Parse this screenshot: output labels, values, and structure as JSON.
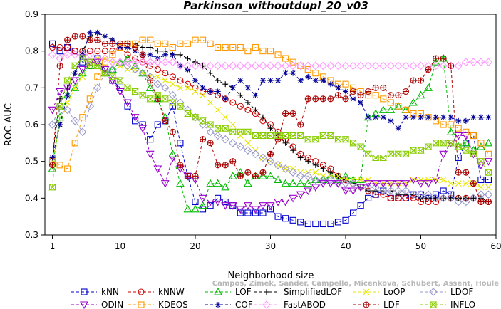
{
  "chart_data": {
    "type": "line",
    "title": "Parkinson_withoutdupl_20_v03",
    "xlabel": "Neighborhood size",
    "ylabel": "ROC AUC",
    "xlim": [
      0,
      60
    ],
    "ylim": [
      0.3,
      0.9
    ],
    "xticks": [
      1,
      10,
      20,
      30,
      40,
      50,
      60
    ],
    "yticks": [
      0.3,
      0.4,
      0.5,
      0.6,
      0.7,
      0.8,
      0.9
    ],
    "grid": false,
    "legend": "bottom",
    "x": [
      1,
      2,
      3,
      4,
      5,
      6,
      7,
      8,
      9,
      10,
      11,
      12,
      13,
      14,
      15,
      16,
      17,
      18,
      19,
      20,
      21,
      22,
      23,
      24,
      25,
      26,
      27,
      28,
      29,
      30,
      31,
      32,
      33,
      34,
      35,
      36,
      37,
      38,
      39,
      40,
      41,
      42,
      43,
      44,
      45,
      46,
      47,
      48,
      49,
      50,
      51,
      52,
      53,
      54,
      55,
      56,
      57,
      58,
      59
    ],
    "series": [
      {
        "name": "kNN",
        "color": "#0000cc",
        "marker": "square",
        "values": [
          0.82,
          0.8,
          0.81,
          0.8,
          0.77,
          0.76,
          0.78,
          0.75,
          0.72,
          0.7,
          0.65,
          0.61,
          0.6,
          0.56,
          0.6,
          0.61,
          0.65,
          0.55,
          0.46,
          0.39,
          0.37,
          0.38,
          0.4,
          0.39,
          0.38,
          0.36,
          0.36,
          0.36,
          0.36,
          0.37,
          0.35,
          0.345,
          0.34,
          0.335,
          0.33,
          0.33,
          0.33,
          0.33,
          0.335,
          0.34,
          0.36,
          0.38,
          0.4,
          0.41,
          0.42,
          0.4,
          0.4,
          0.4,
          0.41,
          0.41,
          0.4,
          0.41,
          0.42,
          0.41,
          0.51,
          0.55,
          0.57,
          0.45,
          0.45
        ]
      },
      {
        "name": "kNNW",
        "color": "#cc0000",
        "marker": "circle",
        "values": [
          0.81,
          0.81,
          0.81,
          0.8,
          0.8,
          0.8,
          0.8,
          0.8,
          0.8,
          0.81,
          0.79,
          0.78,
          0.77,
          0.76,
          0.75,
          0.74,
          0.73,
          0.72,
          0.71,
          0.7,
          0.69,
          0.69,
          0.68,
          0.67,
          0.66,
          0.65,
          0.64,
          0.63,
          0.61,
          0.6,
          0.58,
          0.56,
          0.54,
          0.52,
          0.51,
          0.5,
          0.49,
          0.48,
          0.46,
          0.45,
          0.44,
          0.43,
          0.42,
          0.41,
          0.41,
          0.4,
          0.4,
          0.4,
          0.4,
          0.39,
          0.39,
          0.39,
          0.4,
          0.4,
          0.4,
          0.4,
          0.4,
          0.39,
          0.39
        ]
      },
      {
        "name": "LOF",
        "color": "#00bb00",
        "marker": "triangle",
        "values": [
          0.48,
          0.62,
          0.68,
          0.7,
          0.74,
          0.76,
          0.76,
          0.74,
          0.75,
          0.77,
          0.78,
          0.76,
          0.74,
          0.7,
          0.67,
          0.62,
          0.52,
          0.44,
          0.37,
          0.37,
          0.38,
          0.44,
          0.44,
          0.43,
          0.46,
          0.47,
          0.44,
          0.46,
          0.46,
          0.46,
          0.45,
          0.44,
          0.44,
          0.44,
          0.44,
          0.45,
          0.45,
          0.46,
          0.45,
          0.46,
          0.45,
          0.45,
          0.62,
          0.63,
          0.64,
          0.64,
          0.65,
          0.64,
          0.66,
          0.68,
          0.7,
          0.77,
          0.78,
          0.58,
          0.54,
          0.55,
          0.53,
          0.54,
          0.55
        ]
      },
      {
        "name": "SimplifiedLOF",
        "color": "#000000",
        "marker": "plus",
        "values": [
          0.51,
          0.67,
          0.7,
          0.74,
          0.8,
          0.84,
          0.85,
          0.84,
          0.83,
          0.82,
          0.82,
          0.82,
          0.81,
          0.81,
          0.8,
          0.8,
          0.79,
          0.79,
          0.78,
          0.77,
          0.76,
          0.74,
          0.72,
          0.71,
          0.7,
          0.68,
          0.66,
          0.64,
          0.62,
          0.59,
          0.57,
          0.55,
          0.53,
          0.51,
          0.5,
          0.49,
          0.48,
          0.47,
          0.46,
          0.45,
          0.44,
          0.43,
          0.42,
          0.42,
          0.42,
          0.42,
          0.41,
          0.41,
          0.41,
          0.4,
          0.4,
          0.4,
          0.4,
          0.4,
          0.4,
          0.4,
          0.4,
          0.4,
          0.39
        ]
      },
      {
        "name": "LoOP",
        "color": "#e6e600",
        "marker": "cross",
        "values": [
          0.5,
          0.6,
          0.66,
          0.7,
          0.73,
          0.76,
          0.78,
          0.78,
          0.77,
          0.76,
          0.75,
          0.75,
          0.74,
          0.73,
          0.73,
          0.72,
          0.71,
          0.7,
          0.7,
          0.69,
          0.68,
          0.66,
          0.64,
          0.62,
          0.6,
          0.57,
          0.55,
          0.53,
          0.51,
          0.5,
          0.49,
          0.48,
          0.48,
          0.47,
          0.47,
          0.47,
          0.46,
          0.46,
          0.46,
          0.45,
          0.45,
          0.45,
          0.45,
          0.44,
          0.44,
          0.44,
          0.44,
          0.44,
          0.45,
          0.45,
          0.45,
          0.45,
          0.45,
          0.44,
          0.44,
          0.44,
          0.44,
          0.43,
          0.43
        ]
      },
      {
        "name": "LDOF",
        "color": "#9999cc",
        "marker": "diamond",
        "values": [
          0.6,
          0.65,
          0.64,
          0.61,
          0.58,
          0.65,
          0.7,
          0.74,
          0.75,
          0.77,
          0.76,
          0.75,
          0.74,
          0.73,
          0.71,
          0.7,
          0.68,
          0.66,
          0.64,
          0.62,
          0.6,
          0.58,
          0.57,
          0.56,
          0.55,
          0.54,
          0.53,
          0.52,
          0.51,
          0.5,
          0.49,
          0.48,
          0.47,
          0.46,
          0.46,
          0.45,
          0.45,
          0.45,
          0.44,
          0.44,
          0.44,
          0.43,
          0.43,
          0.43,
          0.42,
          0.42,
          0.42,
          0.42,
          0.41,
          0.41,
          0.41,
          0.4,
          0.4,
          0.4,
          0.39,
          0.39,
          0.4,
          0.41,
          0.41
        ]
      },
      {
        "name": "ODIN",
        "color": "#9900cc",
        "marker": "triangle-down",
        "values": [
          0.64,
          0.69,
          0.7,
          0.72,
          0.75,
          0.77,
          0.77,
          0.75,
          0.72,
          0.69,
          0.66,
          0.62,
          0.59,
          0.52,
          0.48,
          0.44,
          0.51,
          0.48,
          0.46,
          0.45,
          0.4,
          0.39,
          0.39,
          0.38,
          0.38,
          0.37,
          0.38,
          0.37,
          0.38,
          0.38,
          0.39,
          0.39,
          0.4,
          0.41,
          0.42,
          0.43,
          0.44,
          0.44,
          0.44,
          0.42,
          0.42,
          0.43,
          0.44,
          0.44,
          0.44,
          0.44,
          0.44,
          0.44,
          0.45,
          0.44,
          0.44,
          0.45,
          0.52,
          0.55,
          0.57,
          0.57,
          0.52,
          0.49,
          0.5
        ]
      },
      {
        "name": "KDEOS",
        "color": "#ff9900",
        "marker": "square",
        "values": [
          0.5,
          0.49,
          0.48,
          0.55,
          0.62,
          0.67,
          0.73,
          0.77,
          0.79,
          0.81,
          0.82,
          0.82,
          0.83,
          0.83,
          0.82,
          0.82,
          0.81,
          0.82,
          0.82,
          0.83,
          0.83,
          0.82,
          0.81,
          0.81,
          0.81,
          0.81,
          0.8,
          0.81,
          0.8,
          0.8,
          0.79,
          0.78,
          0.77,
          0.76,
          0.75,
          0.74,
          0.73,
          0.72,
          0.71,
          0.71,
          0.7,
          0.69,
          0.68,
          0.68,
          0.67,
          0.66,
          0.65,
          0.64,
          0.63,
          0.63,
          0.62,
          0.61,
          0.6,
          0.6,
          0.59,
          0.58,
          0.57,
          0.55,
          0.52
        ]
      },
      {
        "name": "COF",
        "color": "#000099",
        "marker": "asterisk",
        "values": [
          0.51,
          0.6,
          0.68,
          0.74,
          0.79,
          0.85,
          0.85,
          0.84,
          0.83,
          0.81,
          0.81,
          0.8,
          0.79,
          0.79,
          0.78,
          0.79,
          0.79,
          0.76,
          0.75,
          0.72,
          0.7,
          0.69,
          0.69,
          0.67,
          0.7,
          0.72,
          0.7,
          0.68,
          0.72,
          0.72,
          0.72,
          0.74,
          0.74,
          0.72,
          0.73,
          0.72,
          0.72,
          0.71,
          0.7,
          0.69,
          0.67,
          0.66,
          0.62,
          0.62,
          0.62,
          0.61,
          0.59,
          0.62,
          0.62,
          0.62,
          0.62,
          0.62,
          0.62,
          0.62,
          0.61,
          0.61,
          0.62,
          0.62,
          0.62
        ]
      },
      {
        "name": "FastABOD",
        "color": "#ff99ff",
        "marker": "diamond",
        "values": [
          0.79,
          0.78,
          0.79,
          0.79,
          0.79,
          0.79,
          0.78,
          0.78,
          0.77,
          0.77,
          0.77,
          0.77,
          0.77,
          0.77,
          0.77,
          0.77,
          0.77,
          0.76,
          0.76,
          0.76,
          0.76,
          0.76,
          0.76,
          0.76,
          0.76,
          0.76,
          0.76,
          0.76,
          0.76,
          0.76,
          0.76,
          0.76,
          0.76,
          0.76,
          0.76,
          0.76,
          0.76,
          0.76,
          0.76,
          0.76,
          0.76,
          0.76,
          0.76,
          0.76,
          0.76,
          0.76,
          0.76,
          0.76,
          0.76,
          0.76,
          0.76,
          0.76,
          0.76,
          0.76,
          0.76,
          0.77,
          0.77,
          0.77,
          0.77
        ]
      },
      {
        "name": "LDF",
        "color": "#aa0000",
        "marker": "circle-plus",
        "values": [
          0.49,
          0.76,
          0.83,
          0.84,
          0.84,
          0.83,
          0.83,
          0.82,
          0.82,
          0.82,
          0.82,
          0.81,
          0.79,
          0.72,
          0.67,
          0.61,
          0.58,
          0.49,
          0.46,
          0.46,
          0.56,
          0.55,
          0.49,
          0.49,
          0.5,
          0.46,
          0.47,
          0.46,
          0.47,
          0.52,
          0.56,
          0.63,
          0.63,
          0.6,
          0.67,
          0.67,
          0.67,
          0.67,
          0.68,
          0.67,
          0.69,
          0.68,
          0.69,
          0.7,
          0.7,
          0.68,
          0.68,
          0.69,
          0.72,
          0.72,
          0.75,
          0.78,
          0.78,
          0.76,
          0.47,
          0.47,
          0.44,
          0.39,
          0.39
        ]
      },
      {
        "name": "INFLO",
        "color": "#88cc00",
        "marker": "hourglass",
        "values": [
          0.43,
          0.65,
          0.72,
          0.76,
          0.78,
          0.77,
          0.76,
          0.74,
          0.73,
          0.72,
          0.7,
          0.69,
          0.68,
          0.67,
          0.68,
          0.67,
          0.66,
          0.65,
          0.63,
          0.62,
          0.61,
          0.6,
          0.59,
          0.59,
          0.58,
          0.58,
          0.58,
          0.57,
          0.57,
          0.57,
          0.57,
          0.57,
          0.57,
          0.57,
          0.56,
          0.56,
          0.57,
          0.57,
          0.56,
          0.56,
          0.55,
          0.54,
          0.52,
          0.51,
          0.51,
          0.52,
          0.52,
          0.52,
          0.53,
          0.53,
          0.54,
          0.55,
          0.55,
          0.55,
          0.54,
          0.53,
          0.52,
          0.5,
          0.47
        ]
      }
    ],
    "credit": "Campos, Zimek, Sander, Campello, Micenkova, Schubert, Assent, Houle"
  }
}
